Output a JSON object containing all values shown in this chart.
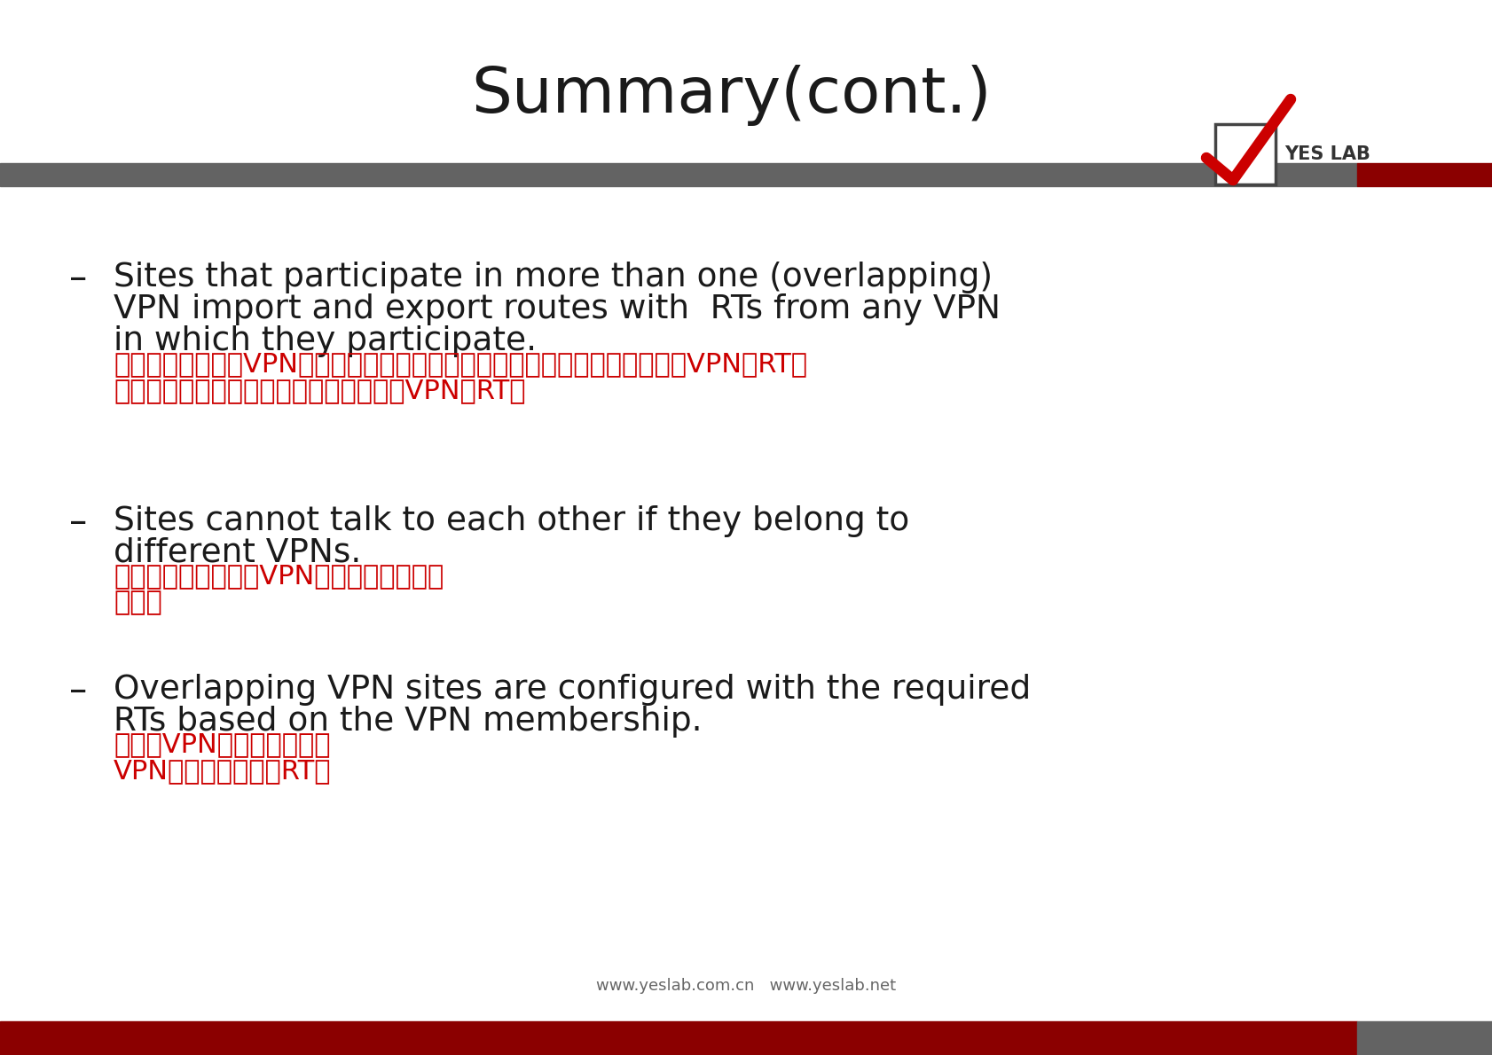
{
  "title": "Summary(cont.)",
  "title_fontsize": 52,
  "background_color": "#ffffff",
  "header_bar_gray": "#636363",
  "header_bar_red": "#8B0000",
  "footer_bar_red": "#8B0000",
  "footer_bar_gray": "#636363",
  "footer_url": "www.yeslab.com.cn   www.yeslab.net",
  "text_color": "#1a1a1a",
  "red_color": "#cc0000",
  "en_fontsize": 27,
  "zh_fontsize": 22,
  "bullet_items": [
    {
      "en_lines": [
        "Sites that participate in more than one (overlapping)",
        "VPN import and export routes with  RTs from any VPN",
        "in which they participate."
      ],
      "zh_lines": [
        "参与多个（重叠）VPN导入和导出路由的站点，其中包含来自他们参与的任何VPN的RT。",
        "由的站点，其中包含来自他们参与的任何VPN的RT。"
      ]
    },
    {
      "en_lines": [
        "Sites cannot talk to each other if they belong to",
        "different VPNs."
      ],
      "zh_lines": [
        "如果网站属于不同的VPN，则网站不能互相",
        "通话。"
      ]
    },
    {
      "en_lines": [
        "Overlapping VPN sites are configured with the required",
        "RTs based on the VPN membership."
      ],
      "zh_lines": [
        "重叠的VPN站点配置有基于",
        "VPN成员身份的所需RT。"
      ]
    }
  ]
}
